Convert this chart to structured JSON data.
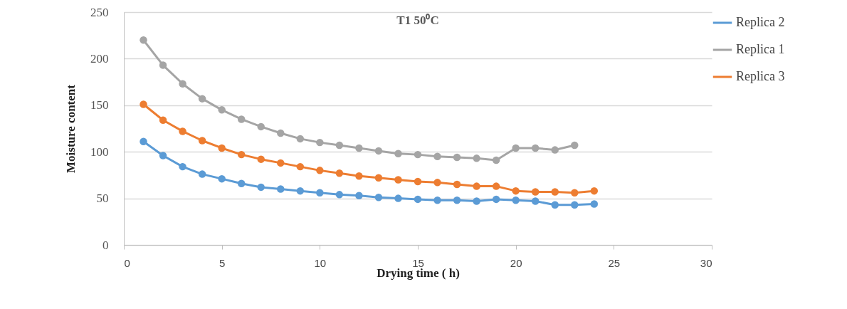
{
  "chart_data": {
    "type": "line",
    "title": "T1 50⁰C",
    "xlabel": "Drying time ( h)",
    "ylabel": "Moisture content",
    "xlim": [
      0,
      30
    ],
    "xticks": [
      0,
      5,
      10,
      15,
      20,
      25,
      30
    ],
    "ylim": [
      0,
      250
    ],
    "yticks": [
      0,
      50,
      100,
      150,
      200,
      250
    ],
    "grid": "y",
    "legend": "right",
    "marker": "circle",
    "line_style": "solid",
    "series": [
      {
        "name": "Replica 2",
        "color": "#5b9bd5",
        "x": [
          1,
          2,
          3,
          4,
          5,
          6,
          7,
          8,
          9,
          10,
          11,
          12,
          13,
          14,
          15,
          16,
          17,
          18,
          19,
          20,
          21,
          22,
          23,
          24
        ],
        "values": [
          111,
          96,
          84,
          76,
          71,
          66,
          62,
          60,
          58,
          56,
          54,
          53,
          51,
          50,
          49,
          48,
          48,
          47,
          49,
          48,
          47,
          43,
          43,
          44
        ]
      },
      {
        "name": "Replica 1",
        "color": "#a5a5a5",
        "x": [
          1,
          2,
          3,
          4,
          5,
          6,
          7,
          8,
          9,
          10,
          11,
          12,
          13,
          14,
          15,
          16,
          17,
          18,
          19,
          20,
          21,
          22,
          23
        ],
        "values": [
          220,
          193,
          173,
          157,
          145,
          135,
          127,
          120,
          114,
          110,
          107,
          104,
          101,
          98,
          97,
          95,
          94,
          93,
          91,
          104,
          104,
          102,
          107
        ]
      },
      {
        "name": "Replica 3",
        "color": "#ed7d31",
        "x": [
          1,
          2,
          3,
          4,
          5,
          6,
          7,
          8,
          9,
          10,
          11,
          12,
          13,
          14,
          15,
          16,
          17,
          18,
          19,
          20,
          21,
          22,
          23,
          24
        ],
        "values": [
          151,
          134,
          122,
          112,
          104,
          97,
          92,
          88,
          84,
          80,
          77,
          74,
          72,
          70,
          68,
          67,
          65,
          63,
          63,
          58,
          57,
          57,
          56,
          58
        ]
      }
    ]
  }
}
